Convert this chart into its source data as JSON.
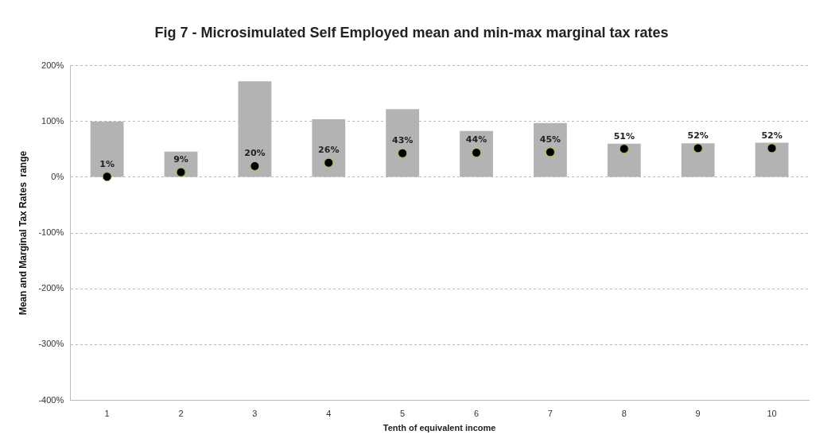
{
  "chart_data": {
    "type": "bar",
    "title": "Fig 7 - Microsimulated Self Employed mean and min-max marginal tax rates",
    "xlabel": "Tenth of equivalent income",
    "ylabel": "Mean and Marginal Tax Rates  range",
    "categories": [
      "1",
      "2",
      "3",
      "4",
      "5",
      "6",
      "7",
      "8",
      "9",
      "10"
    ],
    "series": [
      {
        "color": "#b3b3b3",
        "values": [
          100,
          46,
          172,
          104,
          122,
          83,
          97,
          60,
          61,
          62
        ]
      },
      {
        "type": "scatter",
        "color": "#000000",
        "x": [
          "1",
          "2",
          "3",
          "4",
          "5",
          "6",
          "7",
          "8",
          "9",
          "10"
        ],
        "values": [
          1,
          9,
          20,
          26,
          43,
          44,
          45,
          51,
          52,
          52
        ],
        "value_labels": [
          "1%",
          "9%",
          "20%",
          "26%",
          "43%",
          "44%",
          "45%",
          "51%",
          "52%",
          "52%"
        ]
      }
    ],
    "ylim": [
      -400,
      200
    ],
    "yticks": [
      {
        "value": -400,
        "label": "-400%"
      },
      {
        "value": -300,
        "label": "-300%"
      },
      {
        "value": -200,
        "label": "-200%"
      },
      {
        "value": -100,
        "label": "-100%"
      },
      {
        "value": 0,
        "label": "0%"
      },
      {
        "value": 100,
        "label": "100%"
      },
      {
        "value": 200,
        "label": "200%"
      }
    ],
    "grid": "y",
    "legend": false,
    "marker": "circle"
  }
}
